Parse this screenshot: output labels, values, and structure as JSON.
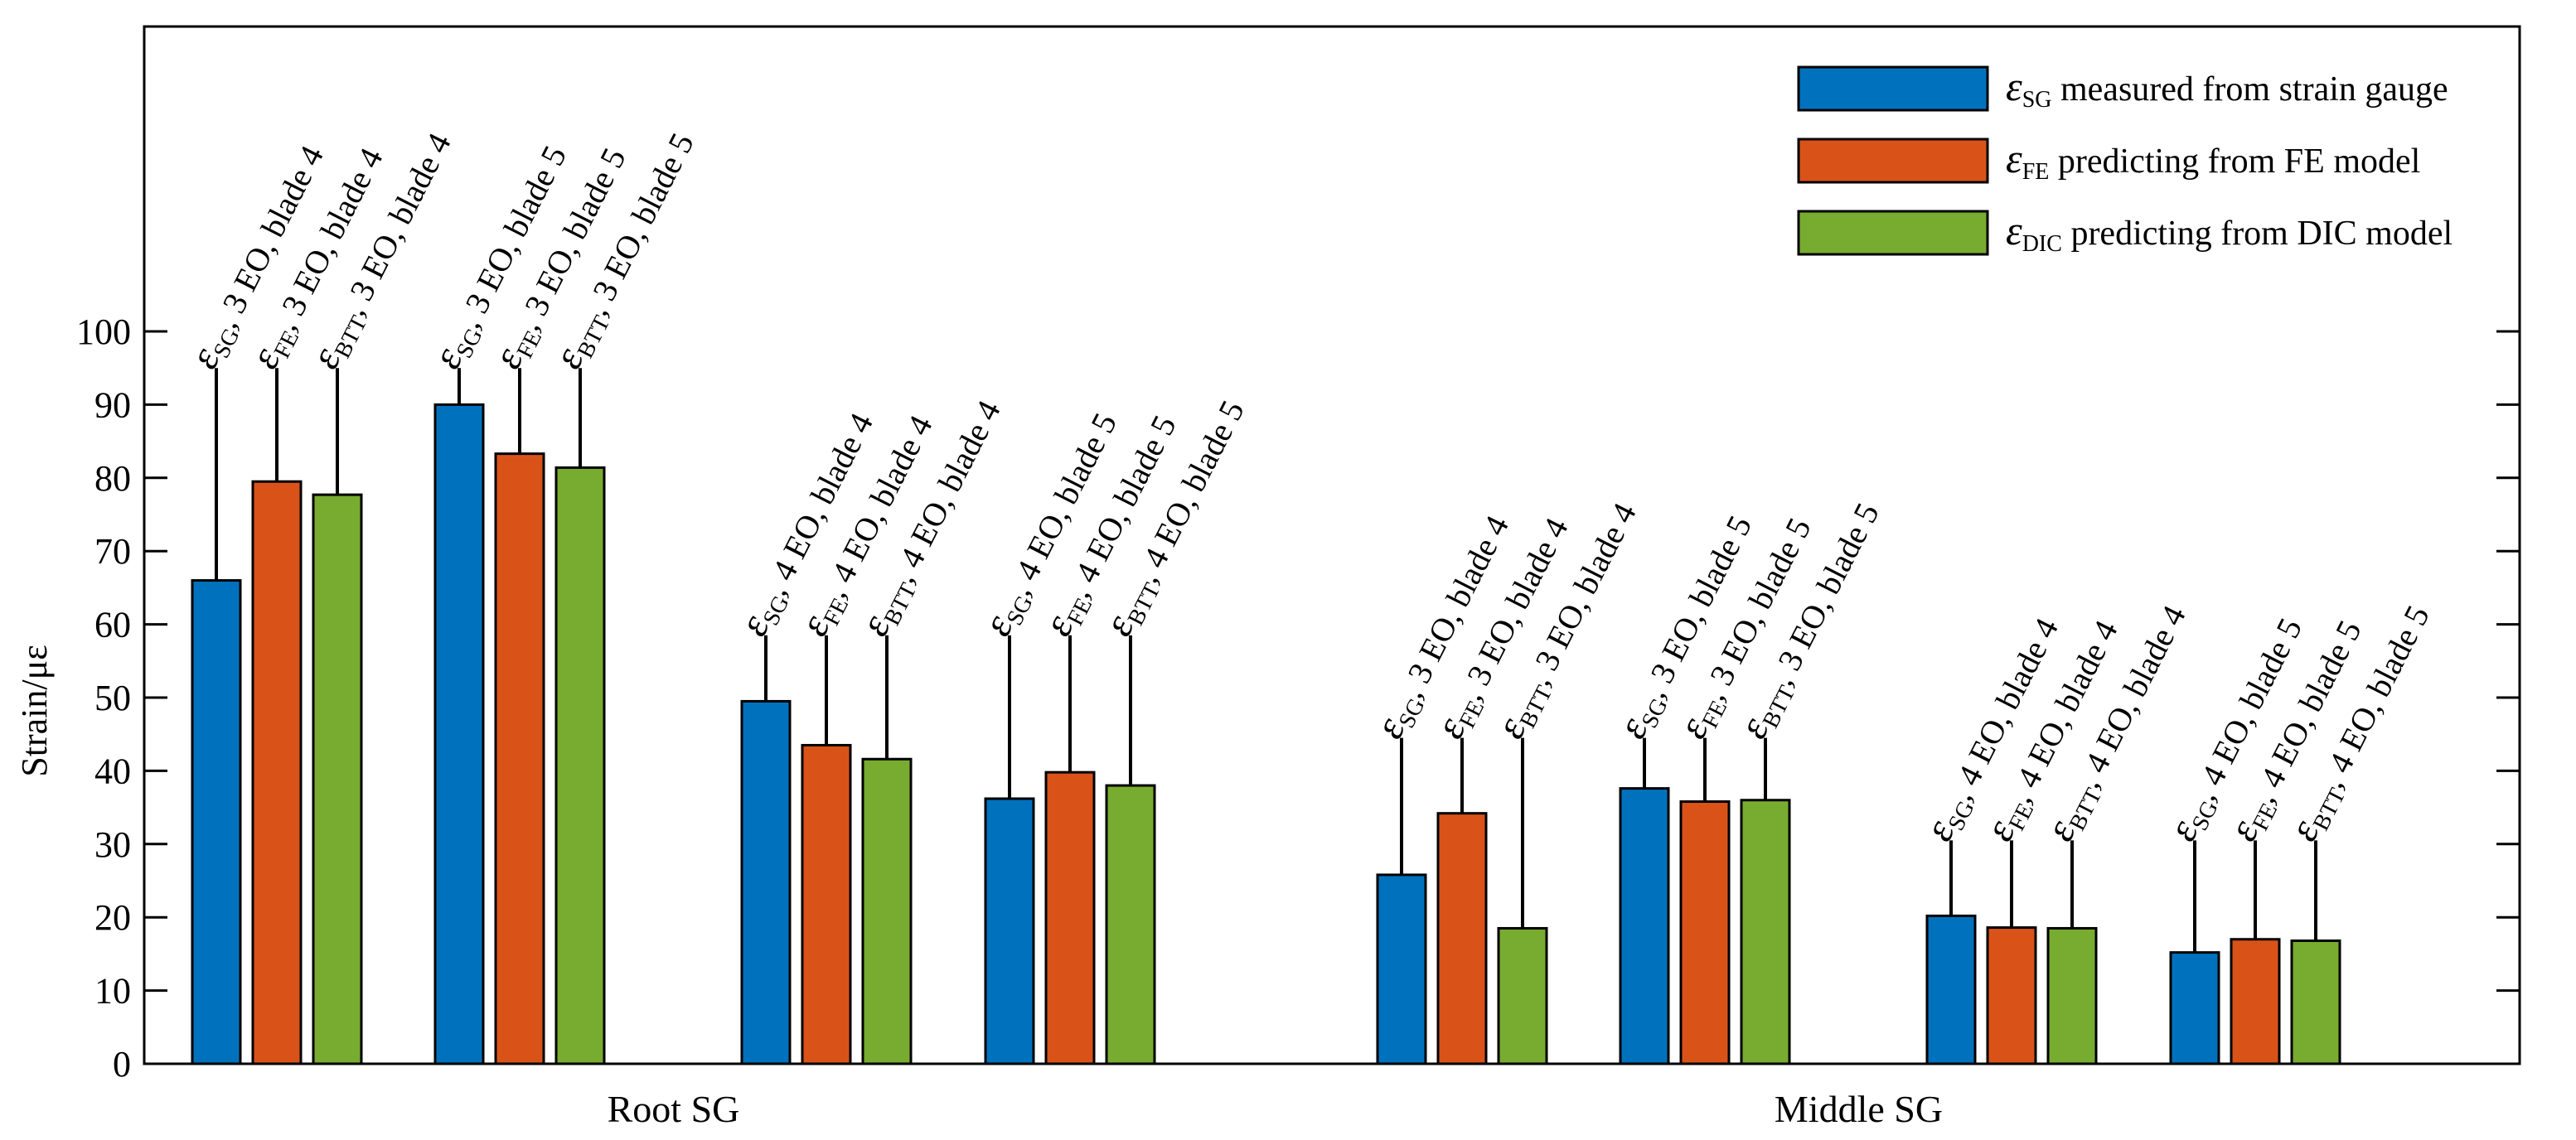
{
  "chart_data": {
    "type": "bar",
    "ylabel": "Strain/με",
    "ylim": [
      0,
      100
    ],
    "yticks": [
      0,
      10,
      20,
      30,
      40,
      50,
      60,
      70,
      80,
      90,
      100
    ],
    "groups": [
      "Root SG",
      "Middle SG"
    ],
    "legend": {
      "placement": "top-right",
      "entries": [
        {
          "symbol": "ε",
          "sub": "SG",
          "text": "measured from strain gauge",
          "color": "#0072BD"
        },
        {
          "symbol": "ε",
          "sub": "FE",
          "text": "predicting from FE model",
          "color": "#D95319"
        },
        {
          "symbol": "ε",
          "sub": "DIC",
          "text": "predicting from DIC model",
          "color": "#77AC30"
        }
      ]
    },
    "clusters": [
      {
        "group": "Root SG",
        "values": [
          66,
          79.5,
          77.7
        ],
        "whisker_top": 95,
        "labels": [
          {
            "sub": "SG",
            "rest": ", 3 EO, blade 4"
          },
          {
            "sub": "FE",
            "rest": ", 3 EO, blade 4"
          },
          {
            "sub": "BTT",
            "rest": ", 3 EO, blade 4"
          }
        ]
      },
      {
        "group": "Root SG",
        "values": [
          90,
          83.3,
          81.4
        ],
        "whisker_top": 95,
        "labels": [
          {
            "sub": "SG",
            "rest": ", 3 EO, blade 5"
          },
          {
            "sub": "FE",
            "rest": ", 3 EO, blade 5"
          },
          {
            "sub": "BTT",
            "rest": ", 3 EO, blade 5"
          }
        ]
      },
      {
        "group": "Root SG",
        "values": [
          49.5,
          43.5,
          41.6
        ],
        "whisker_top": 58.5,
        "labels": [
          {
            "sub": "SG",
            "rest": ", 4 EO, blade 4"
          },
          {
            "sub": "FE",
            "rest": ", 4 EO, blade 4"
          },
          {
            "sub": "BTT",
            "rest": ", 4 EO, blade 4"
          }
        ]
      },
      {
        "group": "Root SG",
        "values": [
          36.2,
          39.8,
          38
        ],
        "whisker_top": 58.5,
        "labels": [
          {
            "sub": "SG",
            "rest": ", 4 EO, blade 5"
          },
          {
            "sub": "FE",
            "rest": ", 4 EO, blade 5"
          },
          {
            "sub": "BTT",
            "rest": ", 4 EO, blade 5"
          }
        ]
      },
      {
        "group": "Middle SG",
        "values": [
          25.8,
          34.2,
          18.5
        ],
        "whisker_top": 44.5,
        "labels": [
          {
            "sub": "SG",
            "rest": ", 3 EO, blade 4"
          },
          {
            "sub": "FE",
            "rest": ", 3 EO, blade 4"
          },
          {
            "sub": "BTT",
            "rest": ", 3 EO, blade 4"
          }
        ]
      },
      {
        "group": "Middle SG",
        "values": [
          37.6,
          35.8,
          36
        ],
        "whisker_top": 44.5,
        "labels": [
          {
            "sub": "SG",
            "rest": ", 3 EO, blade 5"
          },
          {
            "sub": "FE",
            "rest": ", 3 EO, blade 5"
          },
          {
            "sub": "BTT",
            "rest": ", 3 EO, blade 5"
          }
        ]
      },
      {
        "group": "Middle SG",
        "values": [
          20.2,
          18.6,
          18.5
        ],
        "whisker_top": 30.5,
        "labels": [
          {
            "sub": "SG",
            "rest": ", 4 EO, blade 4"
          },
          {
            "sub": "FE",
            "rest": ", 4 EO, blade 4"
          },
          {
            "sub": "BTT",
            "rest": ", 4 EO, blade 4"
          }
        ]
      },
      {
        "group": "Middle SG",
        "values": [
          15.2,
          17,
          16.8
        ],
        "whisker_top": 30.5,
        "labels": [
          {
            "sub": "SG",
            "rest": ", 4 EO, blade 5"
          },
          {
            "sub": "FE",
            "rest": ", 4 EO, blade 5"
          },
          {
            "sub": "BTT",
            "rest": ", 4 EO, blade 5"
          }
        ]
      }
    ],
    "colors": [
      "#0072BD",
      "#D95319",
      "#77AC30"
    ]
  }
}
